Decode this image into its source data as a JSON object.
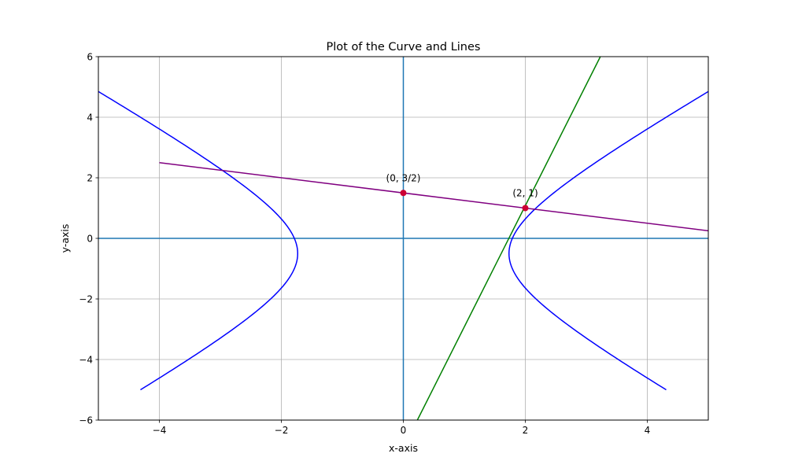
{
  "chart_data": {
    "type": "line",
    "title": "Plot of the Curve and Lines",
    "xlabel": "x-axis",
    "ylabel": "y-axis",
    "xlim": [
      -5,
      5
    ],
    "ylim": [
      -6,
      6
    ],
    "xticks": [
      -4,
      -2,
      0,
      2,
      4
    ],
    "yticks": [
      -6,
      -4,
      -2,
      0,
      2,
      4,
      6
    ],
    "xtick_labels": [
      "−4",
      "−2",
      "0",
      "2",
      "4"
    ],
    "ytick_labels": [
      "−6",
      "−4",
      "−2",
      "0",
      "2",
      "4",
      "6"
    ],
    "grid": true,
    "reference_lines": [
      {
        "orientation": "horizontal",
        "value": 0,
        "color": "#1f77b4"
      },
      {
        "orientation": "vertical",
        "value": 0,
        "color": "#1f77b4"
      }
    ],
    "series": [
      {
        "kind": "curve",
        "color": "#0000ff",
        "equation": "x^2 - (y + 0.5)^2 / 1.3 = 3",
        "branches": [
          {
            "x_range": [
              -3.65,
              -1.8
            ],
            "y_range": [
              -5,
              5
            ],
            "side": "left"
          },
          {
            "x_range": [
              1.8,
              3.65
            ],
            "y_range": [
              -5,
              5
            ],
            "side": "right"
          }
        ]
      },
      {
        "kind": "line",
        "color": "#008000",
        "x": [
          0.23,
          3.23
        ],
        "y": [
          -6,
          6
        ]
      },
      {
        "kind": "line",
        "color": "#800080",
        "x": [
          -4,
          5
        ],
        "y": [
          2.5,
          0.25
        ]
      }
    ],
    "points": [
      {
        "x": 0,
        "y": 1.5,
        "label": "(0, 3/2)",
        "color": "#cc0033"
      },
      {
        "x": 2,
        "y": 1,
        "label": "(2, 1)",
        "color": "#cc0033"
      }
    ]
  }
}
